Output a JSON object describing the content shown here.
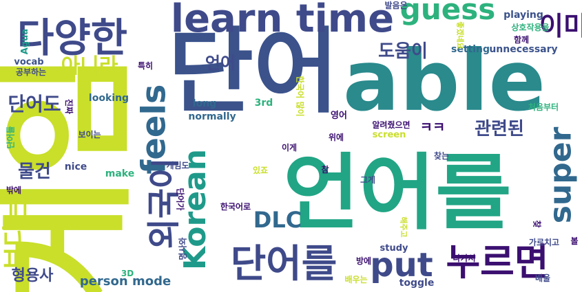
{
  "words": [
    {
      "text": "언어를",
      "color": "#21a585",
      "vertical": false
    },
    {
      "text": "단어",
      "color": "#3b528b",
      "vertical": false
    },
    {
      "text": "able",
      "color": "#2a8a8c",
      "vertical": false
    },
    {
      "text": "게임",
      "color": "#c9df2a",
      "vertical": true
    },
    {
      "text": "learn time",
      "color": "#3f4a8a",
      "vertical": false
    },
    {
      "text": "guess",
      "color": "#2db27d",
      "vertical": false
    },
    {
      "text": "다양한",
      "color": "#3f4a8a",
      "vertical": false
    },
    {
      "text": "이미",
      "color": "#3b0f70",
      "vertical": false
    },
    {
      "text": "외국어",
      "color": "#3f4a8a",
      "vertical": true
    },
    {
      "text": "feels",
      "color": "#31688e",
      "vertical": true
    },
    {
      "text": "super",
      "color": "#31688e",
      "vertical": true
    },
    {
      "text": "Korean",
      "color": "#1f9a8a",
      "vertical": true
    },
    {
      "text": "단어를",
      "color": "#3f4a8a",
      "vertical": false
    },
    {
      "text": "put",
      "color": "#3f4a8a",
      "vertical": false
    },
    {
      "text": "누르면",
      "color": "#3b0f70",
      "vertical": false
    },
    {
      "text": "DLC",
      "color": "#31688e",
      "vertical": false
    },
    {
      "text": "아니라",
      "color": "#c9df2a",
      "vertical": false
    },
    {
      "text": "도움이",
      "color": "#3f4a8a",
      "vertical": false
    },
    {
      "text": "언어",
      "color": "#3f4a8a",
      "vertical": false
    },
    {
      "text": "단어도",
      "color": "#3f4a8a",
      "vertical": false
    },
    {
      "text": "물건",
      "color": "#3f4a8a",
      "vertical": false
    },
    {
      "text": "관련된",
      "color": "#3f4a8a",
      "vertical": false
    },
    {
      "text": "ㅋㅋ",
      "color": "#3b0f70",
      "vertical": false
    },
    {
      "text": "보다는",
      "color": "#c9df2a",
      "vertical": true
    },
    {
      "text": "형용사",
      "color": "#3f4a8a",
      "vertical": false
    },
    {
      "text": "person mode",
      "color": "#31688e",
      "vertical": false
    },
    {
      "text": "playing",
      "color": "#3b528b",
      "vertical": false
    },
    {
      "text": "setting",
      "color": "#31688e",
      "vertical": false
    },
    {
      "text": "unnecessary",
      "color": "#3b528b",
      "vertical": false
    },
    {
      "text": "looking",
      "color": "#31688e",
      "vertical": false
    },
    {
      "text": "long",
      "color": "#31688e",
      "vertical": false
    },
    {
      "text": "normally",
      "color": "#31688e",
      "vertical": false
    },
    {
      "text": "3rd",
      "color": "#2db27d",
      "vertical": false
    },
    {
      "text": "screen",
      "color": "#c9df2a",
      "vertical": false
    },
    {
      "text": "nice",
      "color": "#3f4a8a",
      "vertical": false
    },
    {
      "text": "make",
      "color": "#2db27d",
      "vertical": false
    },
    {
      "text": "vocab",
      "color": "#3b528b",
      "vertical": false
    },
    {
      "text": "study",
      "color": "#3f4a8a",
      "vertical": false
    },
    {
      "text": "toggle",
      "color": "#3f4a8a",
      "vertical": false
    },
    {
      "text": "3D",
      "color": "#2db27d",
      "vertical": false
    },
    {
      "text": "Agua",
      "color": "#1f9a8a",
      "vertical": true
    },
    {
      "text": "발음은",
      "color": "#3f4a8a",
      "vertical": false
    },
    {
      "text": "상호작용을",
      "color": "#2db27d",
      "vertical": false
    },
    {
      "text": "좋겠네요",
      "color": "#c9df2a",
      "vertical": true
    },
    {
      "text": "함께",
      "color": "#3b0f70",
      "vertical": false
    },
    {
      "text": "특히",
      "color": "#3b0f70",
      "vertical": false
    },
    {
      "text": "공부하는",
      "color": "#3f4a8a",
      "vertical": false
    },
    {
      "text": "진짜",
      "color": "#3b0f70",
      "vertical": true
    },
    {
      "text": "한국어 많이",
      "color": "#c9df2a",
      "vertical": true
    },
    {
      "text": "영어",
      "color": "#3b0f70",
      "vertical": false
    },
    {
      "text": "알려줬으면",
      "color": "#3b0f70",
      "vertical": false
    },
    {
      "text": "처음부터",
      "color": "#2db27d",
      "vertical": false
    },
    {
      "text": "이게",
      "color": "#3b0f70",
      "vertical": false
    },
    {
      "text": "위에",
      "color": "#3b0f70",
      "vertical": false
    },
    {
      "text": "단어들",
      "color": "#2db27d",
      "vertical": true
    },
    {
      "text": "보이는",
      "color": "#3f4a8a",
      "vertical": false
    },
    {
      "text": "찾는",
      "color": "#3f4a8a",
      "vertical": false
    },
    {
      "text": "게임도",
      "color": "#3f4a8a",
      "vertical": false
    },
    {
      "text": "그게",
      "color": "#3f4a8a",
      "vertical": false
    },
    {
      "text": "참",
      "color": "#3b0f70",
      "vertical": false
    },
    {
      "text": "있죠",
      "color": "#c9df2a",
      "vertical": false
    },
    {
      "text": "밖에",
      "color": "#3b0f70",
      "vertical": false
    },
    {
      "text": "단어가",
      "color": "#3b0f70",
      "vertical": true
    },
    {
      "text": "한국어로",
      "color": "#3b0f70",
      "vertical": false
    },
    {
      "text": "명사와",
      "color": "#3f4a8a",
      "vertical": true
    },
    {
      "text": "해주고",
      "color": "#c9df2a",
      "vertical": true
    },
    {
      "text": "가르치고",
      "color": "#3f4a8a",
      "vertical": false
    },
    {
      "text": "볼",
      "color": "#3b0f70",
      "vertical": false
    },
    {
      "text": "나가서",
      "color": "#3b0f70",
      "vertical": false
    },
    {
      "text": "방에",
      "color": "#3b0f70",
      "vertical": false
    },
    {
      "text": "배우는",
      "color": "#c9df2a",
      "vertical": false
    },
    {
      "text": "배울",
      "color": "#3f4a8a",
      "vertical": false
    },
    {
      "text": "찾",
      "color": "#3b0f70",
      "vertical": false
    }
  ]
}
